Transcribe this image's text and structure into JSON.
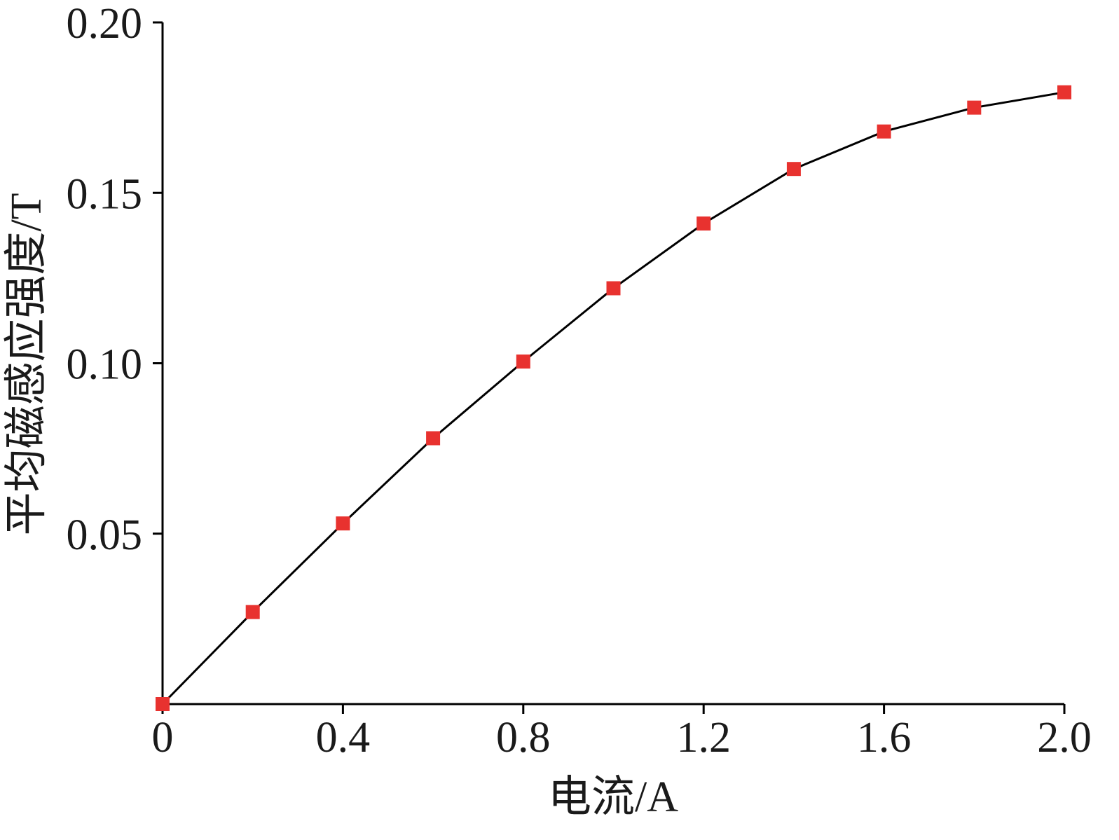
{
  "chart_data": {
    "type": "line",
    "xlabel": "电流/A",
    "ylabel": "平均磁感应强度/T",
    "xlim": [
      0,
      2.0
    ],
    "ylim": [
      0,
      0.2
    ],
    "x_ticks": [
      "0",
      "0.4",
      "0.8",
      "1.2",
      "1.6",
      "2.0"
    ],
    "x_tick_values": [
      0,
      0.4,
      0.8,
      1.2,
      1.6,
      2.0
    ],
    "y_ticks": [
      "0.05",
      "0.10",
      "0.15",
      "0.20"
    ],
    "y_tick_values": [
      0.05,
      0.1,
      0.15,
      0.2
    ],
    "grid": false,
    "series": [
      {
        "x": [
          0,
          0.2,
          0.4,
          0.6,
          0.8,
          1.0,
          1.2,
          1.4,
          1.6,
          1.8,
          2.0
        ],
        "values": [
          0.0,
          0.027,
          0.053,
          0.078,
          0.1005,
          0.122,
          0.141,
          0.157,
          0.168,
          0.175,
          0.1795
        ],
        "line_color": "#000000",
        "marker": "square",
        "marker_color": "#e8322f"
      }
    ]
  }
}
